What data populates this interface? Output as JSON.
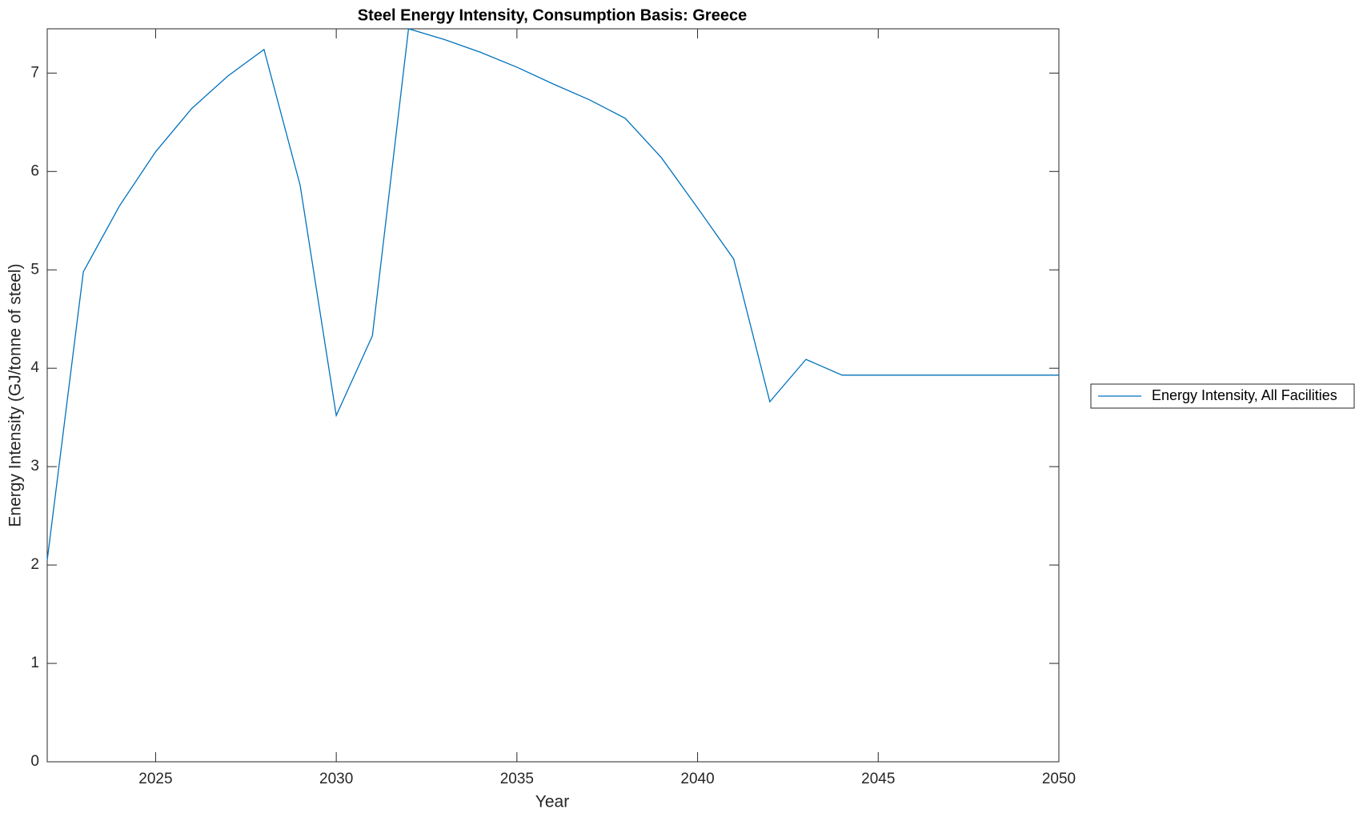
{
  "chart_data": {
    "type": "line",
    "title": "Steel Energy Intensity, Consumption Basis: Greece",
    "x_label": "Year",
    "y_label": "Energy Intensity (GJ/tonne of steel)",
    "x": [
      2022,
      2023,
      2024,
      2025,
      2026,
      2027,
      2028,
      2029,
      2030,
      2031,
      2032,
      2033,
      2034,
      2035,
      2036,
      2037,
      2038,
      2039,
      2040,
      2041,
      2042,
      2043,
      2044,
      2045,
      2046,
      2047,
      2048,
      2049,
      2050
    ],
    "series": [
      {
        "name": "Energy Intensity, All Facilities",
        "color": "#0072bd",
        "values": [
          2.05,
          4.98,
          5.65,
          6.2,
          6.64,
          6.97,
          7.24,
          5.86,
          3.52,
          4.33,
          7.45,
          7.34,
          7.21,
          7.06,
          6.89,
          6.73,
          6.54,
          6.14,
          5.63,
          5.11,
          3.66,
          4.09,
          3.93,
          3.93,
          3.93,
          3.93,
          3.93,
          3.93,
          3.93
        ]
      }
    ],
    "xlim": [
      2022,
      2050
    ],
    "ylim": [
      0,
      7.45
    ],
    "xticks": [
      2025,
      2030,
      2035,
      2040,
      2045,
      2050
    ],
    "yticks": [
      0,
      1,
      2,
      3,
      4,
      5,
      6,
      7
    ],
    "grid": false,
    "legend": "east-outside"
  }
}
